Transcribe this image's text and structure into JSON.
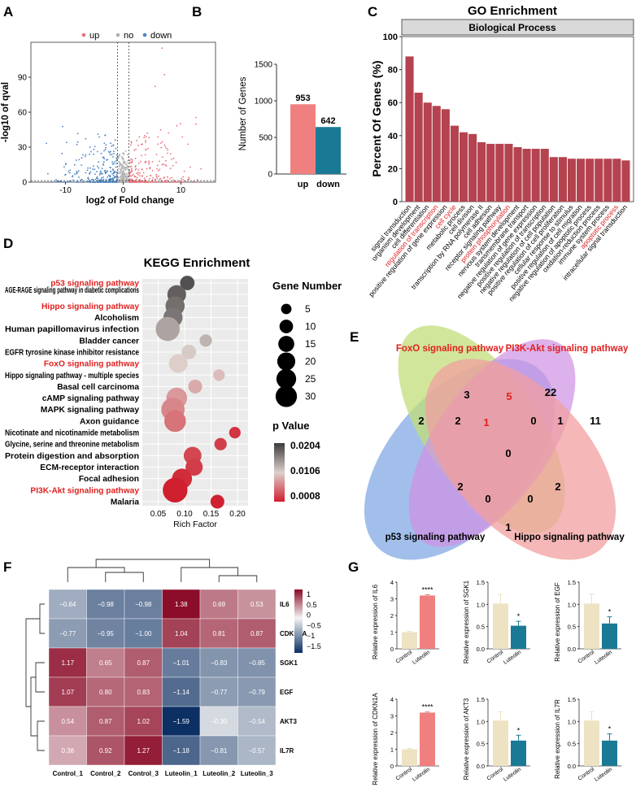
{
  "figure": {
    "panel_letters": [
      "A",
      "B",
      "C",
      "D",
      "E",
      "F",
      "G"
    ]
  },
  "colors": {
    "up": "#e8707a",
    "down": "#4a83bf",
    "no": "#b0b0b0",
    "bar_up": "#f08080",
    "bar_down": "#1a7a95",
    "go_bar": "#b5434f",
    "venn_blue": "#6d9be0",
    "venn_green": "#b7d862",
    "venn_purple": "#c77dde",
    "venn_pink": "#ef8f8f",
    "red_label": "#e02020",
    "g_control": "#ede3c3",
    "g_up": "#f08080",
    "g_down": "#1a7a95",
    "heat_high": "#8b0a26",
    "heat_low": "#0b2f63"
  },
  "chart_data": [
    {
      "panel": "A",
      "type": "scatter",
      "title": "",
      "legend": [
        {
          "key": "up",
          "label": "up"
        },
        {
          "key": "no",
          "label": "no"
        },
        {
          "key": "down",
          "label": "down"
        }
      ],
      "xlabel": "log2 of Fold change",
      "ylabel": "-log10 of qval",
      "xticks": [
        -10,
        0,
        10
      ],
      "yticks": [
        0,
        30,
        60,
        90
      ],
      "xlim": [
        -16,
        16
      ],
      "ylim": [
        0,
        120
      ],
      "threshold_x": [
        -1,
        1
      ]
    },
    {
      "panel": "B",
      "type": "bar",
      "categories": [
        "up",
        "down"
      ],
      "values": [
        953,
        642
      ],
      "labels": [
        "953",
        "642"
      ],
      "ylabel": "Number of Genes",
      "yticks": [
        0,
        500,
        1000,
        1500
      ],
      "ylim": [
        0,
        1500
      ]
    },
    {
      "panel": "C",
      "type": "bar",
      "title": "GO Enrichment",
      "strip": "Biological Process",
      "ylabel": "Percent Of Genes (%)",
      "yticks": [
        0,
        20,
        40,
        60,
        80,
        100
      ],
      "ylim": [
        0,
        100
      ],
      "categories": [
        "signal transduction",
        "organism development",
        "cell differentiation",
        "regulation of transcription",
        "positive regulation of gene expression",
        "cell cycle",
        "metabolic process",
        "cell division",
        "transcription by RNA polymerase II",
        "cell adhesion",
        "receptor signaling pathway",
        "protein phosphorylation",
        "nervous system development",
        "transmembrane transport",
        "negative regulation of gene expression",
        "positive regulation of transcription",
        "negative regulation of cell population",
        "positive regulation of cell proliferation",
        "cellular response to stimulus",
        "positive regulation of cell migration",
        "negative regulation of apoptotic process",
        "oxidation-reduction process",
        "immune system process",
        "apoptotic process",
        "intracellular signal transduction"
      ],
      "values": [
        88,
        66,
        60,
        58,
        56,
        46,
        42,
        41,
        36,
        35,
        35,
        35,
        33,
        32,
        32,
        32,
        27,
        27,
        26,
        26,
        26,
        26,
        26,
        26,
        25
      ],
      "highlight": [
        "regulation of transcription",
        "cell cycle",
        "protein phosphorylation",
        "apoptotic process"
      ]
    },
    {
      "panel": "D",
      "type": "scatter",
      "title": "KEGG Enrichment",
      "xlabel": "Rich Factor",
      "xticks": [
        "0.05",
        "0.10",
        "0.15",
        "0.20"
      ],
      "xlim": [
        0.02,
        0.22
      ],
      "size_legend_title": "Gene Number",
      "size_legend": [
        5,
        10,
        15,
        20,
        25,
        30
      ],
      "color_legend_title": "p Value",
      "color_legend": [
        "0.0204",
        "0.0106",
        "0.0008"
      ],
      "points": [
        {
          "pathway": "p53 signaling pathway",
          "rich": 0.105,
          "genes": 9,
          "p": 0.019,
          "highlight": true
        },
        {
          "pathway": "AGE-RAGE signaling pathway in diabetic complications",
          "rich": 0.085,
          "genes": 17,
          "p": 0.018,
          "highlight": false
        },
        {
          "pathway": "Hippo signaling pathway",
          "rich": 0.082,
          "genes": 18,
          "p": 0.017,
          "highlight": true
        },
        {
          "pathway": "Alcoholism",
          "rich": 0.078,
          "genes": 18,
          "p": 0.0165,
          "highlight": false
        },
        {
          "pathway": "Human papillomavirus infection",
          "rich": 0.068,
          "genes": 31,
          "p": 0.0135,
          "highlight": false
        },
        {
          "pathway": "Bladder cancer",
          "rich": 0.14,
          "genes": 6,
          "p": 0.0125,
          "highlight": false
        },
        {
          "pathway": "EGFR tyrosine kinase inhibitor resistance",
          "rich": 0.108,
          "genes": 9,
          "p": 0.011,
          "highlight": false
        },
        {
          "pathway": "FoxO signaling pathway",
          "rich": 0.088,
          "genes": 17,
          "p": 0.0105,
          "highlight": true
        },
        {
          "pathway": "Hippo signaling pathway - multiple species",
          "rich": 0.165,
          "genes": 5,
          "p": 0.0095,
          "highlight": false
        },
        {
          "pathway": "Basal cell carcinoma",
          "rich": 0.12,
          "genes": 8,
          "p": 0.0085,
          "highlight": false
        },
        {
          "pathway": "cAMP signaling pathway",
          "rich": 0.085,
          "genes": 22,
          "p": 0.0075,
          "highlight": false
        },
        {
          "pathway": "MAPK signaling pathway",
          "rich": 0.078,
          "genes": 29,
          "p": 0.0065,
          "highlight": false
        },
        {
          "pathway": "Axon guidance",
          "rich": 0.082,
          "genes": 24,
          "p": 0.0055,
          "highlight": false
        },
        {
          "pathway": "Nicotinate and nicotinamide metabolism",
          "rich": 0.195,
          "genes": 5,
          "p": 0.002,
          "highlight": false
        },
        {
          "pathway": "Glycine, serine and threonine metabolism",
          "rich": 0.168,
          "genes": 6,
          "p": 0.0025,
          "highlight": false
        },
        {
          "pathway": "Protein digestion and absorption",
          "rich": 0.115,
          "genes": 15,
          "p": 0.003,
          "highlight": false
        },
        {
          "pathway": "ECM-receptor interaction",
          "rich": 0.118,
          "genes": 14,
          "p": 0.0025,
          "highlight": false
        },
        {
          "pathway": "Focal adhesion",
          "rich": 0.095,
          "genes": 20,
          "p": 0.0015,
          "highlight": false
        },
        {
          "pathway": "PI3K-Akt signaling pathway",
          "rich": 0.082,
          "genes": 33,
          "p": 0.0008,
          "highlight": true
        },
        {
          "pathway": "Malaria",
          "rich": 0.162,
          "genes": 8,
          "p": 0.0009,
          "highlight": false
        }
      ]
    },
    {
      "panel": "E",
      "type": "table",
      "subtype": "venn",
      "sets": [
        "FoxO signaling pathway",
        "PI3K-Akt signaling pathway",
        "p53 signaling pathway",
        "Hippo signaling pathway"
      ],
      "set_label_red": [
        true,
        true,
        false,
        false
      ],
      "regions": [
        {
          "sets": "p53",
          "count": "2"
        },
        {
          "sets": "FoxO",
          "count": "3"
        },
        {
          "sets": "PI3K-Akt",
          "count": "22"
        },
        {
          "sets": "Hippo",
          "count": "11"
        },
        {
          "sets": "FoxO&PI3K-Akt",
          "count": "5",
          "red": true
        },
        {
          "sets": "p53&FoxO",
          "count": "2"
        },
        {
          "sets": "PI3K-Akt&Hippo",
          "count": "1"
        },
        {
          "sets": "p53&FoxO&PI3K-Akt",
          "count": "1",
          "red": true
        },
        {
          "sets": "FoxO&PI3K-Akt&Hippo",
          "count": "0"
        },
        {
          "sets": "all",
          "count": "0"
        },
        {
          "sets": "p53&PI3K-Akt",
          "count": "2"
        },
        {
          "sets": "FoxO&Hippo",
          "count": "2"
        },
        {
          "sets": "p53&PI3K-Akt&Hippo",
          "count": "0"
        },
        {
          "sets": "p53&FoxO&Hippo",
          "count": "0"
        },
        {
          "sets": "p53&Hippo",
          "count": "1"
        }
      ]
    },
    {
      "panel": "F",
      "type": "heatmap",
      "columns": [
        "Control_1",
        "Control_2",
        "Control_3",
        "Luteolin_1",
        "Luteolin_2",
        "Luteolin_3"
      ],
      "rows": [
        "IL6",
        "CDKN1A",
        "SGK1",
        "EGF",
        "AKT3",
        "IL7R"
      ],
      "values": [
        [
          -0.64,
          -0.98,
          -0.98,
          1.38,
          0.69,
          0.53
        ],
        [
          -0.77,
          -0.95,
          -1.0,
          1.04,
          0.81,
          0.87
        ],
        [
          1.17,
          0.65,
          0.87,
          -1.01,
          -0.83,
          -0.85
        ],
        [
          1.07,
          0.8,
          0.83,
          -1.14,
          -0.77,
          -0.79
        ],
        [
          0.54,
          0.87,
          1.02,
          -1.59,
          -0.3,
          -0.54
        ],
        [
          0.38,
          0.92,
          1.27,
          -1.18,
          -0.81,
          -0.57
        ]
      ],
      "labels": [
        [
          "−0.64",
          "−0.98",
          "−0.98",
          "1.38",
          "0.69",
          "0.53"
        ],
        [
          "−0.77",
          "−0.95",
          "−1.00",
          "1.04",
          "0.81",
          "0.87"
        ],
        [
          "1.17",
          "0.65",
          "0.87",
          "−1.01",
          "−0.83",
          "−0.85"
        ],
        [
          "1.07",
          "0.80",
          "0.83",
          "−1.14",
          "−0.77",
          "−0.79"
        ],
        [
          "0.54",
          "0.87",
          "1.02",
          "−1.59",
          "−0.30",
          "−0.54"
        ],
        [
          "0.38",
          "0.92",
          "1.27",
          "−1.18",
          "−0.81",
          "−0.57"
        ]
      ],
      "legend_ticks": [
        "1",
        "0.5",
        "0",
        "−0.5",
        "−1",
        "−1.5"
      ],
      "legend_values": [
        1,
        0.5,
        0,
        -0.5,
        -1,
        -1.5
      ],
      "clim": [
        -1.6,
        1.4
      ]
    },
    {
      "panel": "G",
      "type": "bar",
      "categories": [
        "Control",
        "Luteolin"
      ],
      "subplots": [
        {
          "gene": "IL6",
          "ylabel": "Relative  expression of IL6",
          "values": [
            1.0,
            3.2
          ],
          "err": [
            0.05,
            0.05
          ],
          "sig": "****",
          "ylim": [
            0,
            4
          ],
          "yticks": [
            "0",
            "1",
            "2",
            "3",
            "4"
          ]
        },
        {
          "gene": "SGK1",
          "ylabel": "Relative  expression of SGK1",
          "values": [
            1.02,
            0.52
          ],
          "err": [
            0.2,
            0.1
          ],
          "sig": "*",
          "ylim": [
            0,
            1.5
          ],
          "yticks": [
            "0.0",
            "0.5",
            "1.0",
            "1.5"
          ]
        },
        {
          "gene": "EGF",
          "ylabel": "Relative  expression of EGF",
          "values": [
            1.02,
            0.57
          ],
          "err": [
            0.22,
            0.15
          ],
          "sig": "*",
          "ylim": [
            0,
            1.5
          ],
          "yticks": [
            "0.0",
            "0.5",
            "1.0",
            "1.5"
          ]
        },
        {
          "gene": "CDKN1A",
          "ylabel": "Relative  expression of CDKN1A",
          "values": [
            1.0,
            3.2
          ],
          "err": [
            0.05,
            0.05
          ],
          "sig": "****",
          "ylim": [
            0,
            4
          ],
          "yticks": [
            "0",
            "1",
            "2",
            "3",
            "4"
          ]
        },
        {
          "gene": "AKT3",
          "ylabel": "Relative  expression of AKT3",
          "values": [
            1.02,
            0.57
          ],
          "err": [
            0.2,
            0.12
          ],
          "sig": "*",
          "ylim": [
            0,
            1.5
          ],
          "yticks": [
            "0.0",
            "0.5",
            "1.0",
            "1.5"
          ]
        },
        {
          "gene": "IL7R",
          "ylabel": "Relative  expression of IL7R",
          "values": [
            1.02,
            0.57
          ],
          "err": [
            0.2,
            0.15
          ],
          "sig": "*",
          "ylim": [
            0,
            1.5
          ],
          "yticks": [
            "0.0",
            "0.5",
            "1.0",
            "1.5"
          ]
        }
      ]
    }
  ]
}
